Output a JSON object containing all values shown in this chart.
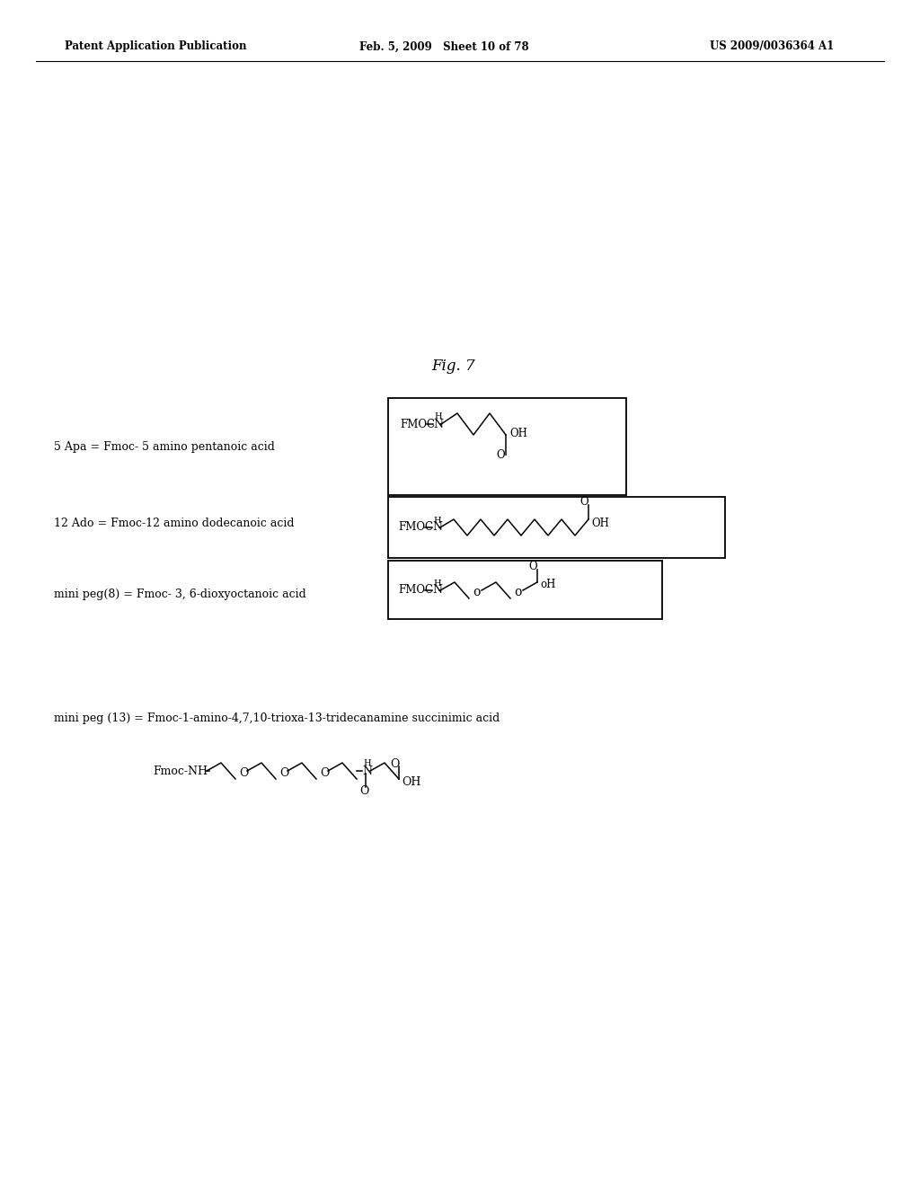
{
  "bg_color": "#ffffff",
  "header_left": "Patent Application Publication",
  "header_mid": "Feb. 5, 2009   Sheet 10 of 78",
  "header_right": "US 2009/0036364 A1",
  "fig_label": "Fig. 7",
  "label1": "5 Apa = Fmoc- 5 amino pentanoic acid",
  "label2": "12 Ado = Fmoc-12 amino dodecanoic acid",
  "label3": "mini peg(8) = Fmoc- 3, 6-dioxyoctanoic acid",
  "label4": "mini peg (13) = Fmoc-1-amino-4,7,10-trioxa-13-tridecanamine succinimic acid"
}
